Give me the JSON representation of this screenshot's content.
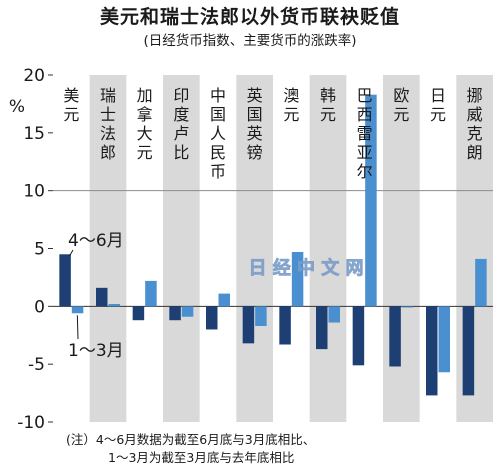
{
  "title": "美元和瑞士法郎以外货币联袂贬值",
  "subtitle": "(日经货币指数、主要货币的涨跌率)",
  "watermark": "日 经 中 文 网",
  "unit_label": "%",
  "notes": {
    "line1": "(注）4～6月数据为截至6月底与3月底相比、",
    "line2": "1～3月为截至3月底与去年底相比"
  },
  "colors": {
    "q2_series": "#1d3f73",
    "q1_series": "#4a8fcf",
    "stripe": "#d9d9d9",
    "gridline": "#8c8c8c",
    "zero_line": "#333333"
  },
  "chart_data": {
    "type": "bar",
    "title": "美元和瑞士法郎以外货币联袂贬值",
    "subtitle": "(日经货币指数、主要货币的涨跌率)",
    "ylabel": "%",
    "ylim": [
      -10,
      20
    ],
    "yticks": [
      20,
      15,
      10,
      5,
      0,
      -5,
      -10
    ],
    "grid": "y=10 line only",
    "categories": [
      "美元",
      "瑞士法郎",
      "加拿大元",
      "印度卢比",
      "中国人民币",
      "英国英镑",
      "澳元",
      "韩元",
      "巴西雷亚尔",
      "欧元",
      "日元",
      "挪威克朗"
    ],
    "series": [
      {
        "name": "4～6月",
        "values": [
          4.5,
          1.6,
          -1.2,
          -1.2,
          -2.0,
          -3.2,
          -3.3,
          -3.7,
          -5.1,
          -5.2,
          -7.7,
          -7.7
        ]
      },
      {
        "name": "1～3月",
        "values": [
          -0.6,
          0.2,
          2.2,
          -0.9,
          1.1,
          -1.7,
          4.7,
          -1.4,
          18.3,
          -0.1,
          -5.7,
          4.1
        ]
      }
    ],
    "legend_placement": "annotations beside first category"
  }
}
